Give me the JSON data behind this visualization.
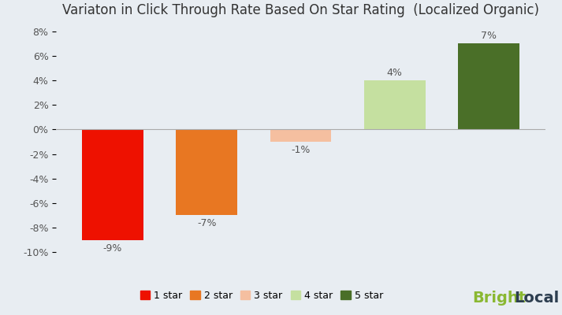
{
  "title": "Variaton in Click Through Rate Based On Star Rating  (Localized Organic)",
  "categories": [
    "1 star",
    "2 star",
    "3 star",
    "4 star",
    "5 star"
  ],
  "values": [
    -9,
    -7,
    -1,
    4,
    7
  ],
  "bar_colors": [
    "#ee1100",
    "#e87722",
    "#f5bfa0",
    "#c5e0a0",
    "#4a6f28"
  ],
  "bar_positions": [
    1,
    2,
    3,
    4,
    5
  ],
  "ylim": [
    -10.5,
    8.5
  ],
  "yticks": [
    -10,
    -8,
    -6,
    -4,
    -2,
    0,
    2,
    4,
    6,
    8
  ],
  "ytick_labels": [
    "-10%",
    "-8%",
    "-6%",
    "-4%",
    "-2%",
    "0%",
    "2%",
    "4%",
    "6%",
    "8%"
  ],
  "background_color": "#e8edf2",
  "legend_labels": [
    "1 star",
    "2 star",
    "3 star",
    "4 star",
    "5 star"
  ],
  "title_fontsize": 12,
  "label_fontsize": 9,
  "brightlocal_bright": "Bright",
  "brightlocal_local": "Local",
  "brightlocal_color_bright": "#8ab832",
  "brightlocal_color_local": "#2d3e50"
}
